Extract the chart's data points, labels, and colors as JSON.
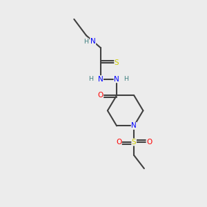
{
  "bg_color": "#ececec",
  "atom_colors": {
    "N": "#0000ff",
    "O": "#ff0000",
    "S": "#cccc00",
    "H_label": "#408080"
  },
  "bond_color": "#404040",
  "bond_width": 1.5,
  "figsize": [
    3.0,
    3.0
  ],
  "dpi": 100,
  "xlim": [
    0,
    10
  ],
  "ylim": [
    0,
    10
  ]
}
